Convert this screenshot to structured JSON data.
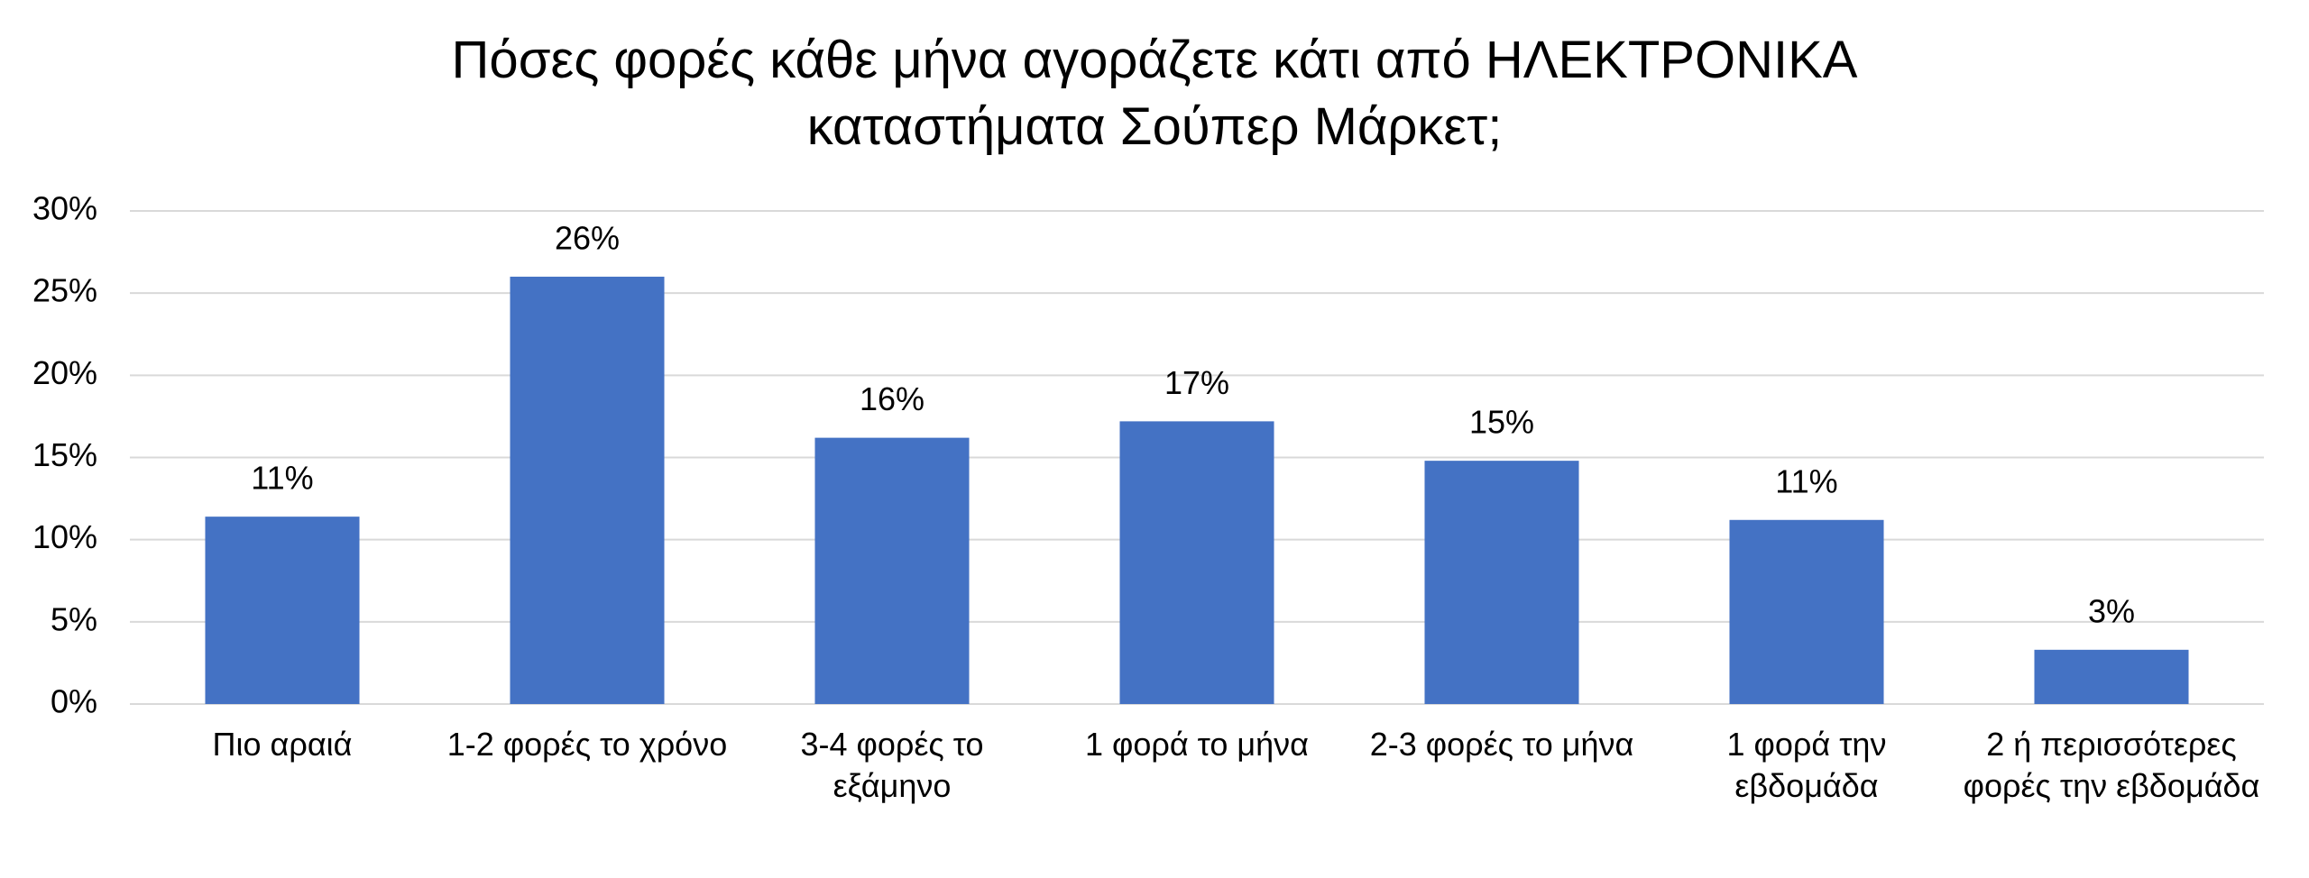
{
  "chart_data": {
    "type": "bar",
    "title": "Πόσες φορές κάθε μήνα αγοράζετε κάτι από ΗΛΕΚΤΡΟΝΙΚΑ καταστήματα Σούπερ Μάρκετ;",
    "categories": [
      "Πιο αραιά",
      "1-2 φορές το χρόνο",
      "3-4 φορές το εξάμηνο",
      "1 φορά το μήνα",
      "2-3 φορές το μήνα",
      "1 φορά την εβδομάδα",
      "2 ή περισσότερες φορές την εβδομάδα"
    ],
    "values": [
      11.4,
      26,
      16.2,
      17.2,
      14.8,
      11.2,
      3.3
    ],
    "value_labels": [
      "11%",
      "26%",
      "16%",
      "17%",
      "15%",
      "11%",
      "3%"
    ],
    "color": "#4472c4",
    "ylim": [
      0,
      30
    ],
    "yticks": [
      {
        "value": 0,
        "label": "0%"
      },
      {
        "value": 5,
        "label": "5%"
      },
      {
        "value": 10,
        "label": "10%"
      },
      {
        "value": 15,
        "label": "15%"
      },
      {
        "value": 20,
        "label": "20%"
      },
      {
        "value": 25,
        "label": "25%"
      },
      {
        "value": 30,
        "label": "30%"
      }
    ],
    "grid": true
  }
}
